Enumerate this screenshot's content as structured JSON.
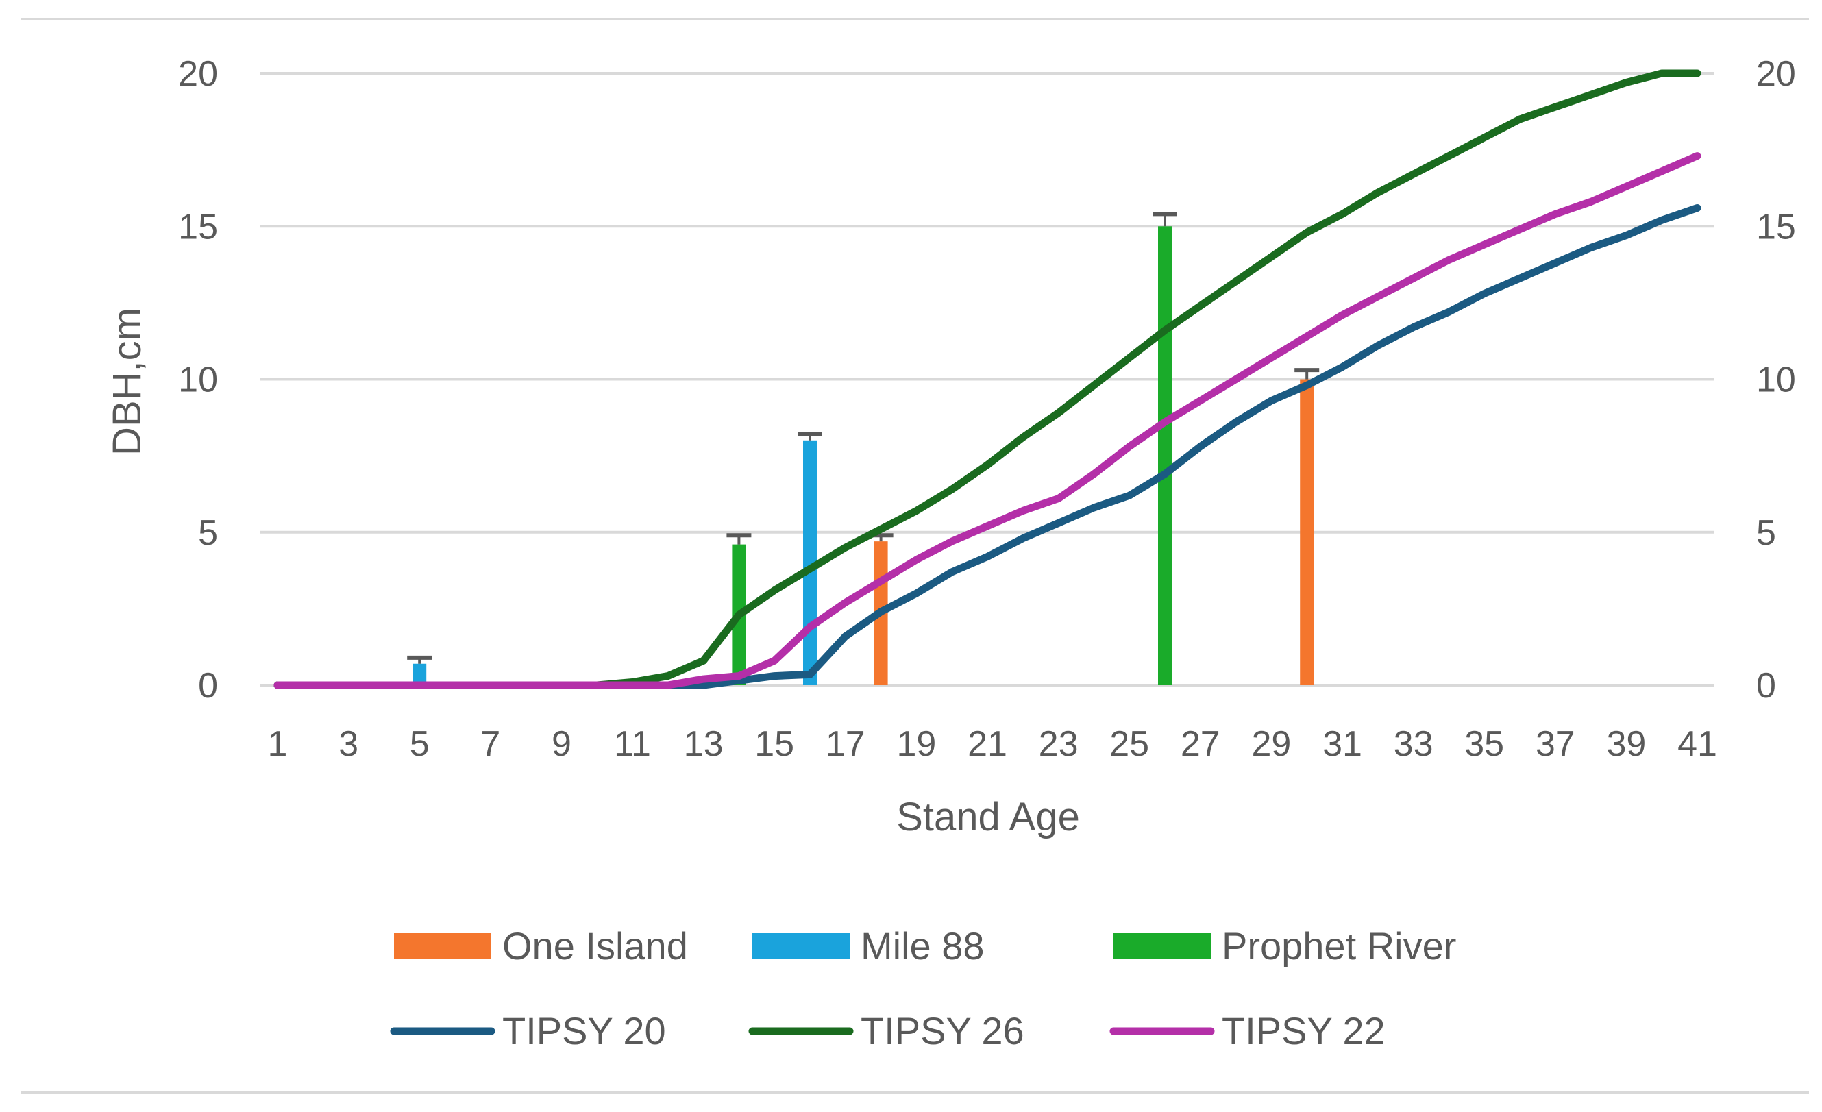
{
  "chart_data": {
    "type": "bar",
    "title": "",
    "xlabel": "Stand Age",
    "ylabel": "DBH,cm",
    "x": [
      1,
      2,
      3,
      4,
      5,
      6,
      7,
      8,
      9,
      10,
      11,
      12,
      13,
      14,
      15,
      16,
      17,
      18,
      19,
      20,
      21,
      22,
      23,
      24,
      25,
      26,
      27,
      28,
      29,
      30,
      31,
      32,
      33,
      34,
      35,
      36,
      37,
      38,
      39,
      40,
      41
    ],
    "x_tick_labels": [
      "1",
      "3",
      "5",
      "7",
      "9",
      "11",
      "13",
      "15",
      "17",
      "19",
      "21",
      "23",
      "25",
      "27",
      "29",
      "31",
      "33",
      "35",
      "37",
      "39",
      "41"
    ],
    "ylim": [
      0,
      20
    ],
    "y_ticks": [
      "0",
      "5",
      "10",
      "15",
      "20"
    ],
    "secondary_y_ticks": [
      "0",
      "5",
      "10",
      "15",
      "20"
    ],
    "grid": true,
    "legend_position": "bottom",
    "bar_series": [
      {
        "name": "One Island",
        "color": "#f4762d",
        "points": [
          {
            "x": 18,
            "y": 4.7,
            "error": 0.2
          },
          {
            "x": 30,
            "y": 10.0,
            "error": 0.3
          }
        ]
      },
      {
        "name": "Mile 88",
        "color": "#1aa3dc",
        "points": [
          {
            "x": 5,
            "y": 0.7,
            "error": 0.2
          },
          {
            "x": 16,
            "y": 8.0,
            "error": 0.2
          }
        ]
      },
      {
        "name": "Prophet River",
        "color": "#1aab2a",
        "points": [
          {
            "x": 14,
            "y": 4.6,
            "error": 0.3
          },
          {
            "x": 26,
            "y": 15.0,
            "error": 0.4
          }
        ]
      }
    ],
    "line_series": [
      {
        "name": "TIPSY 20",
        "color": "#1b5a82",
        "values": [
          0,
          0,
          0,
          0,
          0,
          0,
          0,
          0,
          0,
          0,
          0,
          0,
          0,
          0.15,
          0.3,
          0.35,
          1.6,
          2.4,
          3.0,
          3.7,
          4.2,
          4.8,
          5.3,
          5.8,
          6.2,
          6.9,
          7.8,
          8.6,
          9.3,
          9.8,
          10.4,
          11.1,
          11.7,
          12.2,
          12.8,
          13.3,
          13.8,
          14.3,
          14.7,
          15.2,
          15.6
        ]
      },
      {
        "name": "TIPSY 26",
        "color": "#1a6b1f",
        "values": [
          0,
          0,
          0,
          0,
          0,
          0,
          0,
          0,
          0,
          0,
          0.1,
          0.3,
          0.8,
          2.3,
          3.1,
          3.8,
          4.5,
          5.1,
          5.7,
          6.4,
          7.2,
          8.1,
          8.9,
          9.8,
          10.7,
          11.6,
          12.4,
          13.2,
          14.0,
          14.8,
          15.4,
          16.1,
          16.7,
          17.3,
          17.9,
          18.5,
          18.9,
          19.3,
          19.7,
          20.0,
          20.3
        ]
      },
      {
        "name": "TIPSY 22",
        "color": "#b42fa8",
        "values": [
          0,
          0,
          0,
          0,
          0,
          0,
          0,
          0,
          0,
          0,
          0,
          0,
          0.2,
          0.3,
          0.8,
          1.9,
          2.7,
          3.4,
          4.1,
          4.7,
          5.2,
          5.7,
          6.1,
          6.9,
          7.8,
          8.6,
          9.3,
          10.0,
          10.7,
          11.4,
          12.1,
          12.7,
          13.3,
          13.9,
          14.4,
          14.9,
          15.4,
          15.8,
          16.3,
          16.8,
          17.3
        ]
      }
    ]
  },
  "colors": {
    "grid": "#d9d9d9",
    "text": "#595959",
    "error_cap": "#595959"
  }
}
